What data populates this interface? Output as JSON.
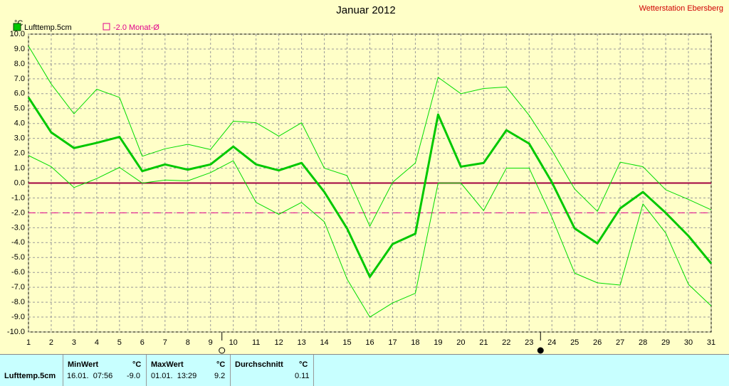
{
  "chart_data": {
    "type": "line",
    "title": "Januar 2012",
    "source": "Wetterstation Ebersberg",
    "y_unit": "°C",
    "x": [
      1,
      2,
      3,
      4,
      5,
      6,
      7,
      8,
      9,
      10,
      11,
      12,
      13,
      14,
      15,
      16,
      17,
      18,
      19,
      20,
      21,
      22,
      23,
      24,
      25,
      26,
      27,
      28,
      29,
      30,
      31
    ],
    "xlim": [
      1,
      31
    ],
    "series": [
      {
        "name": "Lufttemp.5cm",
        "color": "#00c800",
        "width": 3,
        "values": [
          5.75,
          3.4,
          2.35,
          2.7,
          3.1,
          0.8,
          1.25,
          0.9,
          1.25,
          2.45,
          1.25,
          0.85,
          1.35,
          -0.6,
          -3.05,
          -6.3,
          -4.1,
          -3.4,
          4.6,
          1.1,
          1.35,
          3.55,
          2.65,
          0.05,
          -3.05,
          -4.05,
          -1.7,
          -0.6,
          -2.0,
          -3.55,
          -5.4
        ]
      },
      {
        "color": "#00dc00",
        "width": 1,
        "values": [
          9.2,
          6.65,
          4.65,
          6.3,
          5.75,
          1.8,
          2.3,
          2.6,
          2.25,
          4.15,
          4.05,
          3.15,
          4.05,
          1.0,
          0.5,
          -2.9,
          0.05,
          1.35,
          7.1,
          6.0,
          6.35,
          6.45,
          4.55,
          2.2,
          -0.4,
          -1.9,
          1.4,
          1.1,
          -0.45,
          -1.1,
          -1.8
        ]
      },
      {
        "color": "#00dc00",
        "width": 1,
        "values": [
          1.85,
          1.1,
          -0.3,
          0.3,
          1.05,
          0,
          0.2,
          0.15,
          0.7,
          1.5,
          -1.3,
          -2.1,
          -1.3,
          -2.6,
          -6.45,
          -9.0,
          -8.05,
          -7.4,
          0,
          0,
          -1.85,
          1.0,
          1.0,
          -2.3,
          -6.05,
          -6.7,
          -6.85,
          -1.4,
          -3.35,
          -6.8,
          -8.25
        ]
      }
    ],
    "reference": {
      "value": -2.0,
      "label": "-2.0 Monat-Ø",
      "color": "#e0008c"
    },
    "ylim": [
      -10,
      10
    ],
    "yticks": [
      {
        "value": 10,
        "label": "10.0"
      },
      {
        "value": 9,
        "label": "9.0"
      },
      {
        "value": 8,
        "label": "8.0"
      },
      {
        "value": 7,
        "label": "7.0"
      },
      {
        "value": 6,
        "label": "6.0"
      },
      {
        "value": 5,
        "label": "5.0"
      },
      {
        "value": 4,
        "label": "4.0"
      },
      {
        "value": 3,
        "label": "3.0"
      },
      {
        "value": 2,
        "label": "2.0"
      },
      {
        "value": 1,
        "label": "1.0"
      },
      {
        "value": 0,
        "label": "0.0"
      },
      {
        "value": -1,
        "label": "-1.0"
      },
      {
        "value": -2,
        "label": "-2.0"
      },
      {
        "value": -3,
        "label": "-3.0"
      },
      {
        "value": -4,
        "label": "-4.0"
      },
      {
        "value": -5,
        "label": "-5.0"
      },
      {
        "value": -6,
        "label": "-6.0"
      },
      {
        "value": -7,
        "label": "-7.0"
      },
      {
        "value": -8,
        "label": "-8.0"
      },
      {
        "value": -9,
        "label": "-9.0"
      },
      {
        "value": -10,
        "label": "-10.0"
      }
    ],
    "grid": true
  },
  "table": {
    "header": [
      "MinWert",
      "°C",
      "MaxWert",
      "°C",
      "Durchschnitt",
      "°C"
    ],
    "row": {
      "name": "Lufttemp.5cm",
      "min_time": "16.01.  07:56",
      "min": "-9.0",
      "max_time": "01.01.  13:29",
      "max": "9.2",
      "avg": "0.11"
    }
  }
}
